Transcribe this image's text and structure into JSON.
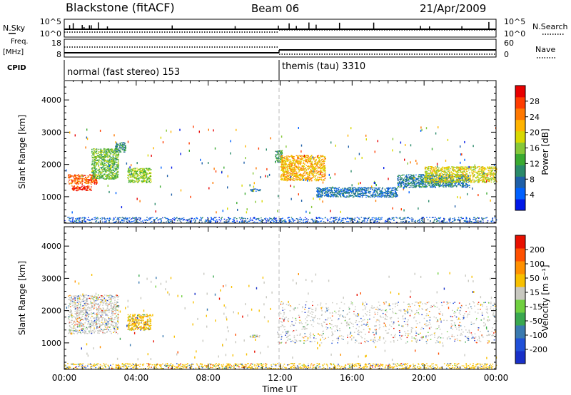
{
  "header": {
    "radar": "Blackstone (fitACF)",
    "beam": "Beam 06",
    "date": "21/Apr/2009"
  },
  "left_labels": {
    "nsky": "N.Sky",
    "freq": "Freq.",
    "freq_unit": "[MHz]",
    "cpid": "CPID"
  },
  "right_labels": {
    "nsearch": "N.Search",
    "nave": "Nave"
  },
  "nsky_panel": {
    "left_ticks": [
      "10^5",
      "10^0"
    ],
    "right_ticks": [
      "10^5",
      "10^0"
    ]
  },
  "freq_panel": {
    "left_ticks": [
      "18",
      "8"
    ],
    "right_ticks": [
      "60",
      "0"
    ]
  },
  "cpid": {
    "segments": [
      {
        "label": "normal (fast stereo) 153",
        "start_hour": 0
      },
      {
        "label": "themis (tau) 3310",
        "start_hour": 12
      }
    ]
  },
  "chart_data": [
    {
      "type": "heatmap",
      "panel": "power",
      "ylabel": "Slant Range [km]",
      "ylim": [
        180,
        4600
      ],
      "yticks": [
        "1000",
        "2000",
        "3000",
        "4000"
      ],
      "xlim": [
        0,
        24
      ],
      "colorbar": {
        "title": "Power [dB]",
        "ticks": [
          "4",
          "8",
          "12",
          "16",
          "20",
          "24",
          "28"
        ],
        "colors": [
          "#0018e8",
          "#0060ff",
          "#1e5fa8",
          "#2a8a6a",
          "#3aaa30",
          "#86c838",
          "#d8d800",
          "#ffb400",
          "#ff7800",
          "#ff3c00",
          "#e80000"
        ]
      },
      "regions": [
        {
          "t": [
            0.2,
            1.8
          ],
          "r": [
            1400,
            1700
          ],
          "level": 0.85
        },
        {
          "t": [
            0.4,
            1.5
          ],
          "r": [
            1200,
            1350
          ],
          "level": 0.95
        },
        {
          "t": [
            1.5,
            3.0
          ],
          "r": [
            1550,
            2500
          ],
          "level": 0.45
        },
        {
          "t": [
            2.8,
            3.4
          ],
          "r": [
            2400,
            2700
          ],
          "level": 0.3
        },
        {
          "t": [
            3.5,
            4.8
          ],
          "r": [
            1450,
            1900
          ],
          "level": 0.5
        },
        {
          "t": [
            10.3,
            10.9
          ],
          "r": [
            1180,
            1260
          ],
          "level": 0.2
        },
        {
          "t": [
            11.7,
            12.1
          ],
          "r": [
            2050,
            2450
          ],
          "level": 0.35
        },
        {
          "t": [
            12.0,
            14.5
          ],
          "r": [
            1500,
            2300
          ],
          "level": 0.7
        },
        {
          "t": [
            14.0,
            18.5
          ],
          "r": [
            1000,
            1300
          ],
          "level": 0.2
        },
        {
          "t": [
            18.5,
            22.5
          ],
          "r": [
            1300,
            1700
          ],
          "level": 0.25
        },
        {
          "t": [
            20.0,
            24.0
          ],
          "r": [
            1450,
            1950
          ],
          "level": 0.6
        },
        {
          "t": [
            0.0,
            24.0
          ],
          "r": [
            200,
            380
          ],
          "level": 0.15
        }
      ]
    },
    {
      "type": "heatmap",
      "panel": "velocity",
      "ylabel": "Slant Range [km]",
      "ylim": [
        180,
        4600
      ],
      "yticks": [
        "1000",
        "2000",
        "3000",
        "4000"
      ],
      "xlim": [
        0,
        24
      ],
      "xticks": [
        "00:00",
        "04:00",
        "08:00",
        "12:00",
        "16:00",
        "20:00",
        "00:00"
      ],
      "xlabel": "Time UT",
      "colorbar": {
        "title": "Velocity [m s⁻¹]",
        "ticks": [
          "200",
          "100",
          "50",
          "15",
          "-15",
          "-50",
          "-100",
          "-200"
        ],
        "colors": [
          "#1830c8",
          "#2050d8",
          "#3a7ab0",
          "#3aa850",
          "#70d040",
          "#c8c8c0",
          "#f8c000",
          "#ff9000",
          "#ff5000",
          "#e81000"
        ]
      },
      "regions": [
        {
          "t": [
            0.2,
            3.0
          ],
          "r": [
            1300,
            2500
          ],
          "level": 0.5
        },
        {
          "t": [
            3.5,
            4.8
          ],
          "r": [
            1400,
            1900
          ],
          "level": 0.65
        },
        {
          "t": [
            10.3,
            10.9
          ],
          "r": [
            1180,
            1260
          ],
          "level": 0.4
        },
        {
          "t": [
            11.8,
            24.0
          ],
          "r": [
            1000,
            2300
          ],
          "level": 0.5
        },
        {
          "t": [
            0.0,
            24.0
          ],
          "r": [
            200,
            380
          ],
          "level": 0.62
        }
      ]
    }
  ]
}
